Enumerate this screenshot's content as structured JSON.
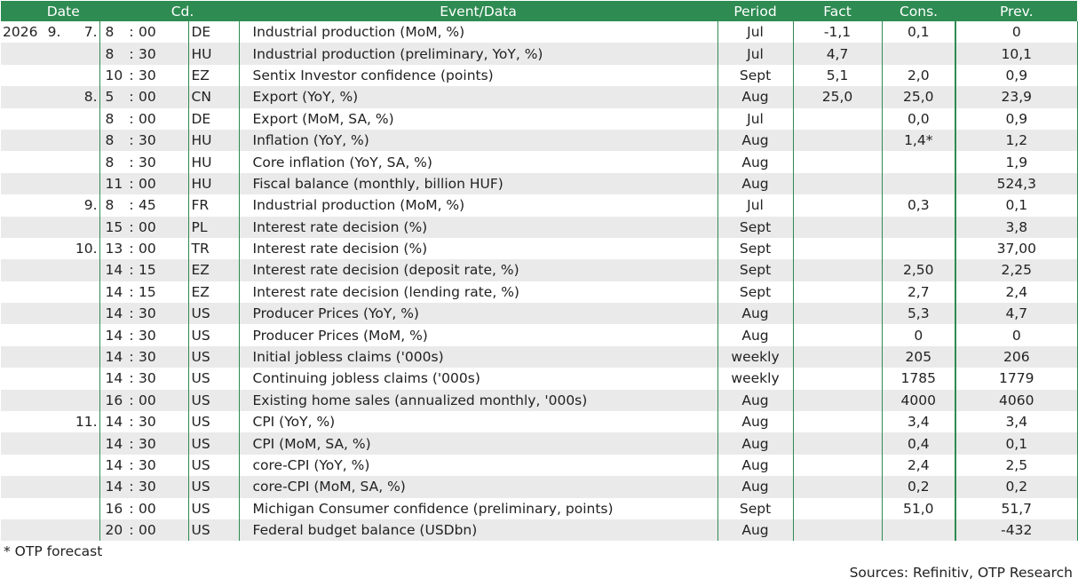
{
  "headers": {
    "date": "Date",
    "code": "Cd.",
    "event": "Event/Data",
    "period": "Period",
    "fact": "Fact",
    "cons": "Cons.",
    "prev": "Prev."
  },
  "rows": [
    {
      "year": "2026",
      "month": "9.",
      "day": "7.",
      "hour": "8",
      "min": "00",
      "code": "DE",
      "event": "Industrial production (MoM, %)",
      "period": "Jul",
      "fact": "-1,1",
      "cons": "0,1",
      "prev": "0"
    },
    {
      "year": "",
      "month": "",
      "day": "",
      "hour": "8",
      "min": "30",
      "code": "HU",
      "event": "Industrial production (preliminary, YoY, %)",
      "period": "Jul",
      "fact": "4,7",
      "cons": "",
      "prev": "10,1"
    },
    {
      "year": "",
      "month": "",
      "day": "",
      "hour": "10",
      "min": "30",
      "code": "EZ",
      "event": "Sentix Investor confidence (points)",
      "period": "Sept",
      "fact": "5,1",
      "cons": "2,0",
      "prev": "0,9"
    },
    {
      "year": "",
      "month": "",
      "day": "8.",
      "hour": "5",
      "min": "00",
      "code": "CN",
      "event": "Export (YoY, %)",
      "period": "Aug",
      "fact": "25,0",
      "cons": "25,0",
      "prev": "23,9"
    },
    {
      "year": "",
      "month": "",
      "day": "",
      "hour": "8",
      "min": "00",
      "code": "DE",
      "event": "Export (MoM, SA, %)",
      "period": "Jul",
      "fact": "",
      "cons": "0,0",
      "prev": "0,9"
    },
    {
      "year": "",
      "month": "",
      "day": "",
      "hour": "8",
      "min": "30",
      "code": "HU",
      "event": "Inflation (YoY, %)",
      "period": "Aug",
      "fact": "",
      "cons": "1,4*",
      "prev": "1,2"
    },
    {
      "year": "",
      "month": "",
      "day": "",
      "hour": "8",
      "min": "30",
      "code": "HU",
      "event": "Core inflation (YoY, SA, %)",
      "period": "Aug",
      "fact": "",
      "cons": "",
      "prev": "1,9"
    },
    {
      "year": "",
      "month": "",
      "day": "",
      "hour": "11",
      "min": "00",
      "code": "HU",
      "event": "Fiscal balance (monthly, billion HUF)",
      "period": "Aug",
      "fact": "",
      "cons": "",
      "prev": "524,3"
    },
    {
      "year": "",
      "month": "",
      "day": "9.",
      "hour": "8",
      "min": "45",
      "code": "FR",
      "event": "Industrial production (MoM, %)",
      "period": "Jul",
      "fact": "",
      "cons": "0,3",
      "prev": "0,1"
    },
    {
      "year": "",
      "month": "",
      "day": "",
      "hour": "15",
      "min": "00",
      "code": "PL",
      "event": "Interest rate decision (%)",
      "period": "Sept",
      "fact": "",
      "cons": "",
      "prev": "3,8"
    },
    {
      "year": "",
      "month": "",
      "day": "10.",
      "hour": "13",
      "min": "00",
      "code": "TR",
      "event": "Interest rate decision (%)",
      "period": "Sept",
      "fact": "",
      "cons": "",
      "prev": "37,00"
    },
    {
      "year": "",
      "month": "",
      "day": "",
      "hour": "14",
      "min": "15",
      "code": "EZ",
      "event": "Interest rate decision (deposit rate, %)",
      "period": "Sept",
      "fact": "",
      "cons": "2,50",
      "prev": "2,25"
    },
    {
      "year": "",
      "month": "",
      "day": "",
      "hour": "14",
      "min": "15",
      "code": "EZ",
      "event": "Interest rate decision (lending rate, %)",
      "period": "Sept",
      "fact": "",
      "cons": "2,7",
      "prev": "2,4"
    },
    {
      "year": "",
      "month": "",
      "day": "",
      "hour": "14",
      "min": "30",
      "code": "US",
      "event": "Producer Prices (YoY, %)",
      "period": "Aug",
      "fact": "",
      "cons": "5,3",
      "prev": "4,7"
    },
    {
      "year": "",
      "month": "",
      "day": "",
      "hour": "14",
      "min": "30",
      "code": "US",
      "event": "Producer Prices (MoM, %)",
      "period": "Aug",
      "fact": "",
      "cons": "0",
      "prev": "0"
    },
    {
      "year": "",
      "month": "",
      "day": "",
      "hour": "14",
      "min": "30",
      "code": "US",
      "event": "Initial jobless claims ('000s)",
      "period": "weekly",
      "fact": "",
      "cons": "205",
      "prev": "206"
    },
    {
      "year": "",
      "month": "",
      "day": "",
      "hour": "14",
      "min": "30",
      "code": "US",
      "event": "Continuing jobless claims ('000s)",
      "period": "weekly",
      "fact": "",
      "cons": "1785",
      "prev": "1779"
    },
    {
      "year": "",
      "month": "",
      "day": "",
      "hour": "16",
      "min": "00",
      "code": "US",
      "event": "Existing home sales (annualized monthly, '000s)",
      "period": "Aug",
      "fact": "",
      "cons": "4000",
      "prev": "4060"
    },
    {
      "year": "",
      "month": "",
      "day": "11.",
      "hour": "14",
      "min": "30",
      "code": "US",
      "event": "CPI (YoY, %)",
      "period": "Aug",
      "fact": "",
      "cons": "3,4",
      "prev": "3,4"
    },
    {
      "year": "",
      "month": "",
      "day": "",
      "hour": "14",
      "min": "30",
      "code": "US",
      "event": "CPI (MoM, SA, %)",
      "period": "Aug",
      "fact": "",
      "cons": "0,4",
      "prev": "0,1"
    },
    {
      "year": "",
      "month": "",
      "day": "",
      "hour": "14",
      "min": "30",
      "code": "US",
      "event": "core-CPI (YoY, %)",
      "period": "Aug",
      "fact": "",
      "cons": "2,4",
      "prev": "2,5"
    },
    {
      "year": "",
      "month": "",
      "day": "",
      "hour": "14",
      "min": "30",
      "code": "US",
      "event": "core-CPI (MoM, SA, %)",
      "period": "Aug",
      "fact": "",
      "cons": "0,2",
      "prev": "0,2"
    },
    {
      "year": "",
      "month": "",
      "day": "",
      "hour": "16",
      "min": "00",
      "code": "US",
      "event": "Michigan Consumer confidence (preliminary, points)",
      "period": "Sept",
      "fact": "",
      "cons": "51,0",
      "prev": "51,7"
    },
    {
      "year": "",
      "month": "",
      "day": "",
      "hour": "20",
      "min": "00",
      "code": "US",
      "event": "Federal budget balance (USDbn)",
      "period": "Aug",
      "fact": "",
      "cons": "",
      "prev": "-432"
    }
  ],
  "colon": ":",
  "footnote": "* OTP forecast",
  "sources": "Sources: Refinitiv, OTP Research",
  "colors": {
    "header_bg": "#2e8b52",
    "header_text": "#ffffff",
    "stripe": "#eaeaea",
    "divider": "#2e8b52"
  }
}
